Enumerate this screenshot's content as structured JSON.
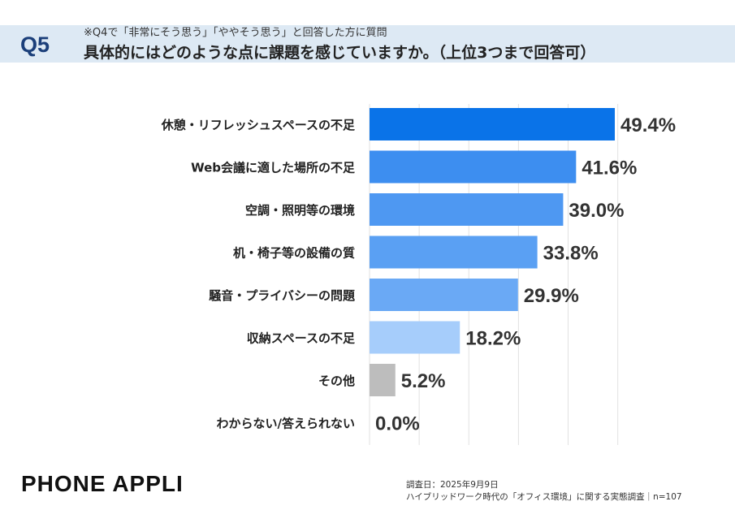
{
  "header": {
    "q_number": "Q5",
    "note": "※Q4で「非常にそう思う」「ややそう思う」と回答した方に質問",
    "question": "具体的にはどのような点に課題を感じていますか。（上位3つまで回答可）"
  },
  "chart_data": {
    "type": "bar",
    "orientation": "horizontal",
    "categories": [
      "休憩・リフレッシュスペースの不足",
      "Web会議に適した場所の不足",
      "空調・照明等の環境",
      "机・椅子等の設備の質",
      "騒音・プライバシーの問題",
      "収納スペースの不足",
      "その他",
      "わからない/答えられない"
    ],
    "values": [
      49.4,
      41.6,
      39.0,
      33.8,
      29.9,
      18.2,
      5.2,
      0.0
    ],
    "value_labels": [
      "49.4%",
      "41.6%",
      "39.0%",
      "33.8%",
      "29.9%",
      "18.2%",
      "5.2%",
      "0.0%"
    ],
    "colors": [
      "#0a73e8",
      "#3d8ef0",
      "#4e98f2",
      "#5aa0f3",
      "#6aa9f5",
      "#a6cdfb",
      "#bdbdbd",
      "#bdbdbd"
    ],
    "xlim": [
      0,
      55
    ],
    "grid": true
  },
  "brand": "PHONE APPLI",
  "footer": {
    "line1": "調査日：2025年9月9日",
    "line2": "ハイブリッドワーク時代の「オフィス環境」に関する実態調査｜n=107"
  }
}
